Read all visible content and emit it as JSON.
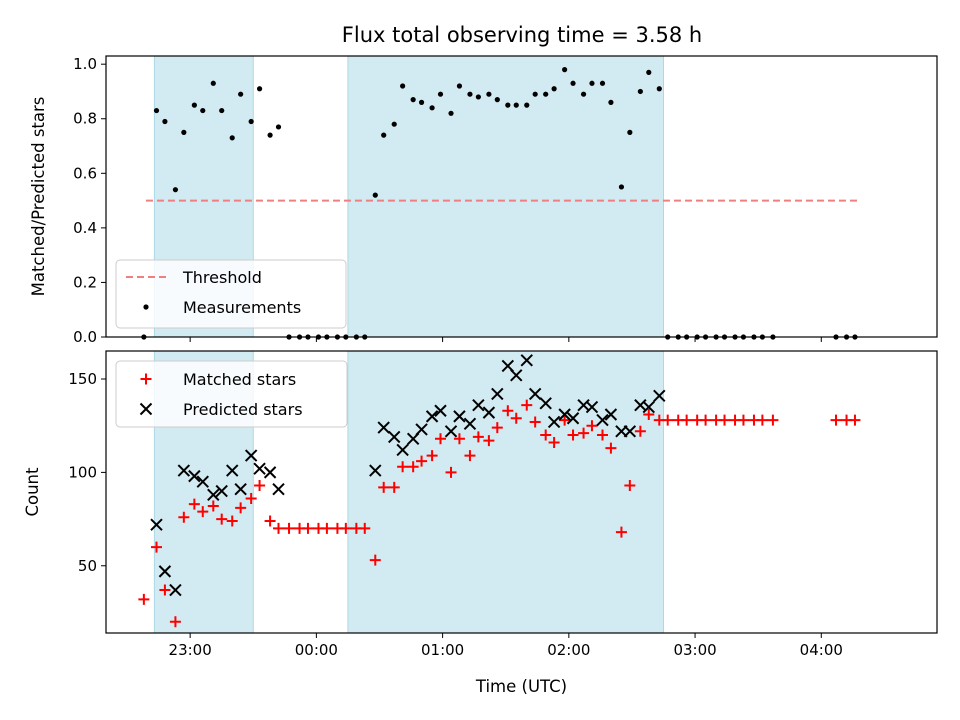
{
  "chart_data": [
    {
      "type": "scatter",
      "title": "Flux total observing time = 3.58 h",
      "xlabel": "",
      "ylabel": "Matched/Predicted stars",
      "xlim": [
        "22:20",
        "04:55"
      ],
      "ylim": [
        0.0,
        1.03
      ],
      "yticks": [
        "0.0",
        "0.2",
        "0.4",
        "0.6",
        "0.8",
        "1.0"
      ],
      "legend": {
        "position": "lower-left"
      },
      "grid": false,
      "shaded_intervals": [
        {
          "start": "22:43",
          "end": "23:30",
          "color": "#add8e6"
        },
        {
          "start": "00:15",
          "end": "02:45",
          "color": "#add8e6"
        }
      ],
      "threshold": {
        "name": "Threshold",
        "value": 0.5,
        "x_start": "22:39",
        "x_end": "04:18",
        "color": "#f08080",
        "style": "dashed"
      },
      "series": [
        {
          "name": "Measurements",
          "marker": "dot",
          "color": "#000000",
          "points": [
            [
              "22:38",
              0.0
            ],
            [
              "22:44",
              0.83
            ],
            [
              "22:48",
              0.79
            ],
            [
              "22:53",
              0.54
            ],
            [
              "22:57",
              0.75
            ],
            [
              "23:02",
              0.85
            ],
            [
              "23:06",
              0.83
            ],
            [
              "23:11",
              0.93
            ],
            [
              "23:15",
              0.83
            ],
            [
              "23:20",
              0.73
            ],
            [
              "23:24",
              0.89
            ],
            [
              "23:29",
              0.79
            ],
            [
              "23:33",
              0.91
            ],
            [
              "23:38",
              0.74
            ],
            [
              "23:42",
              0.77
            ],
            [
              "23:47",
              0.0
            ],
            [
              "23:52",
              0.0
            ],
            [
              "23:56",
              0.0
            ],
            [
              "00:01",
              0.0
            ],
            [
              "00:05",
              0.0
            ],
            [
              "00:10",
              0.0
            ],
            [
              "00:14",
              0.0
            ],
            [
              "00:19",
              0.0
            ],
            [
              "00:23",
              0.0
            ],
            [
              "00:28",
              0.52
            ],
            [
              "00:32",
              0.74
            ],
            [
              "00:37",
              0.78
            ],
            [
              "00:41",
              0.92
            ],
            [
              "00:46",
              0.87
            ],
            [
              "00:50",
              0.86
            ],
            [
              "00:55",
              0.84
            ],
            [
              "00:59",
              0.89
            ],
            [
              "01:04",
              0.82
            ],
            [
              "01:08",
              0.92
            ],
            [
              "01:13",
              0.89
            ],
            [
              "01:17",
              0.88
            ],
            [
              "01:22",
              0.89
            ],
            [
              "01:26",
              0.87
            ],
            [
              "01:31",
              0.85
            ],
            [
              "01:35",
              0.85
            ],
            [
              "01:40",
              0.85
            ],
            [
              "01:44",
              0.89
            ],
            [
              "01:49",
              0.89
            ],
            [
              "01:53",
              0.91
            ],
            [
              "01:58",
              0.98
            ],
            [
              "02:02",
              0.93
            ],
            [
              "02:07",
              0.89
            ],
            [
              "02:11",
              0.93
            ],
            [
              "02:16",
              0.93
            ],
            [
              "02:20",
              0.86
            ],
            [
              "02:25",
              0.55
            ],
            [
              "02:29",
              0.75
            ],
            [
              "02:34",
              0.9
            ],
            [
              "02:38",
              0.97
            ],
            [
              "02:43",
              0.91
            ],
            [
              "02:47",
              0.0
            ],
            [
              "02:52",
              0.0
            ],
            [
              "02:56",
              0.0
            ],
            [
              "03:01",
              0.0
            ],
            [
              "03:05",
              0.0
            ],
            [
              "03:10",
              0.0
            ],
            [
              "03:14",
              0.0
            ],
            [
              "03:19",
              0.0
            ],
            [
              "03:23",
              0.0
            ],
            [
              "03:28",
              0.0
            ],
            [
              "03:32",
              0.0
            ],
            [
              "03:37",
              0.0
            ],
            [
              "04:07",
              0.0
            ],
            [
              "04:12",
              0.0
            ],
            [
              "04:16",
              0.0
            ]
          ]
        }
      ]
    },
    {
      "type": "scatter",
      "title": "",
      "xlabel": "Time (UTC)",
      "ylabel": "Count",
      "xlim": [
        "22:20",
        "04:55"
      ],
      "xticks": [
        "23:00",
        "00:00",
        "01:00",
        "02:00",
        "03:00",
        "04:00"
      ],
      "ylim": [
        14,
        165
      ],
      "yticks": [
        "50",
        "100",
        "150"
      ],
      "legend": {
        "position": "upper-left"
      },
      "grid": false,
      "shaded_intervals": [
        {
          "start": "22:43",
          "end": "23:30",
          "color": "#add8e6"
        },
        {
          "start": "00:15",
          "end": "02:45",
          "color": "#add8e6"
        }
      ],
      "series": [
        {
          "name": "Matched stars",
          "marker": "plus",
          "color": "#ff0000",
          "points": [
            [
              "22:38",
              32
            ],
            [
              "22:44",
              60
            ],
            [
              "22:48",
              37
            ],
            [
              "22:53",
              20
            ],
            [
              "22:57",
              76
            ],
            [
              "23:02",
              83
            ],
            [
              "23:06",
              79
            ],
            [
              "23:11",
              82
            ],
            [
              "23:15",
              75
            ],
            [
              "23:20",
              74
            ],
            [
              "23:24",
              81
            ],
            [
              "23:29",
              86
            ],
            [
              "23:33",
              93
            ],
            [
              "23:38",
              74
            ],
            [
              "23:42",
              70
            ],
            [
              "23:47",
              70
            ],
            [
              "23:52",
              70
            ],
            [
              "23:56",
              70
            ],
            [
              "00:01",
              70
            ],
            [
              "00:05",
              70
            ],
            [
              "00:10",
              70
            ],
            [
              "00:14",
              70
            ],
            [
              "00:19",
              70
            ],
            [
              "00:23",
              70
            ],
            [
              "00:28",
              53
            ],
            [
              "00:32",
              92
            ],
            [
              "00:37",
              92
            ],
            [
              "00:41",
              103
            ],
            [
              "00:46",
              103
            ],
            [
              "00:50",
              106
            ],
            [
              "00:55",
              109
            ],
            [
              "00:59",
              118
            ],
            [
              "01:04",
              100
            ],
            [
              "01:08",
              118
            ],
            [
              "01:13",
              109
            ],
            [
              "01:17",
              119
            ],
            [
              "01:22",
              117
            ],
            [
              "01:26",
              124
            ],
            [
              "01:31",
              133
            ],
            [
              "01:35",
              129
            ],
            [
              "01:40",
              136
            ],
            [
              "01:44",
              127
            ],
            [
              "01:49",
              120
            ],
            [
              "01:53",
              116
            ],
            [
              "01:58",
              128
            ],
            [
              "02:02",
              120
            ],
            [
              "02:07",
              121
            ],
            [
              "02:11",
              125
            ],
            [
              "02:16",
              120
            ],
            [
              "02:20",
              113
            ],
            [
              "02:25",
              68
            ],
            [
              "02:29",
              93
            ],
            [
              "02:34",
              122
            ],
            [
              "02:38",
              131
            ],
            [
              "02:43",
              128
            ],
            [
              "02:47",
              128
            ],
            [
              "02:52",
              128
            ],
            [
              "02:56",
              128
            ],
            [
              "03:01",
              128
            ],
            [
              "03:05",
              128
            ],
            [
              "03:10",
              128
            ],
            [
              "03:14",
              128
            ],
            [
              "03:19",
              128
            ],
            [
              "03:23",
              128
            ],
            [
              "03:28",
              128
            ],
            [
              "03:32",
              128
            ],
            [
              "03:37",
              128
            ],
            [
              "04:07",
              128
            ],
            [
              "04:12",
              128
            ],
            [
              "04:16",
              128
            ]
          ]
        },
        {
          "name": "Predicted stars",
          "marker": "x",
          "color": "#000000",
          "points": [
            [
              "22:44",
              72
            ],
            [
              "22:48",
              47
            ],
            [
              "22:53",
              37
            ],
            [
              "22:57",
              101
            ],
            [
              "23:02",
              98
            ],
            [
              "23:06",
              95
            ],
            [
              "23:11",
              88
            ],
            [
              "23:15",
              90
            ],
            [
              "23:20",
              101
            ],
            [
              "23:24",
              91
            ],
            [
              "23:29",
              109
            ],
            [
              "23:33",
              102
            ],
            [
              "23:38",
              100
            ],
            [
              "23:42",
              91
            ],
            [
              "00:28",
              101
            ],
            [
              "00:32",
              124
            ],
            [
              "00:37",
              119
            ],
            [
              "00:41",
              112
            ],
            [
              "00:46",
              118
            ],
            [
              "00:50",
              123
            ],
            [
              "00:55",
              130
            ],
            [
              "00:59",
              133
            ],
            [
              "01:04",
              122
            ],
            [
              "01:08",
              130
            ],
            [
              "01:13",
              126
            ],
            [
              "01:17",
              136
            ],
            [
              "01:22",
              132
            ],
            [
              "01:26",
              142
            ],
            [
              "01:31",
              157
            ],
            [
              "01:35",
              152
            ],
            [
              "01:40",
              160
            ],
            [
              "01:44",
              142
            ],
            [
              "01:49",
              137
            ],
            [
              "01:53",
              127
            ],
            [
              "01:58",
              131
            ],
            [
              "02:02",
              129
            ],
            [
              "02:07",
              136
            ],
            [
              "02:11",
              135
            ],
            [
              "02:16",
              128
            ],
            [
              "02:20",
              131
            ],
            [
              "02:25",
              122
            ],
            [
              "02:29",
              122
            ],
            [
              "02:34",
              136
            ],
            [
              "02:38",
              135
            ],
            [
              "02:43",
              141
            ]
          ]
        }
      ]
    }
  ]
}
